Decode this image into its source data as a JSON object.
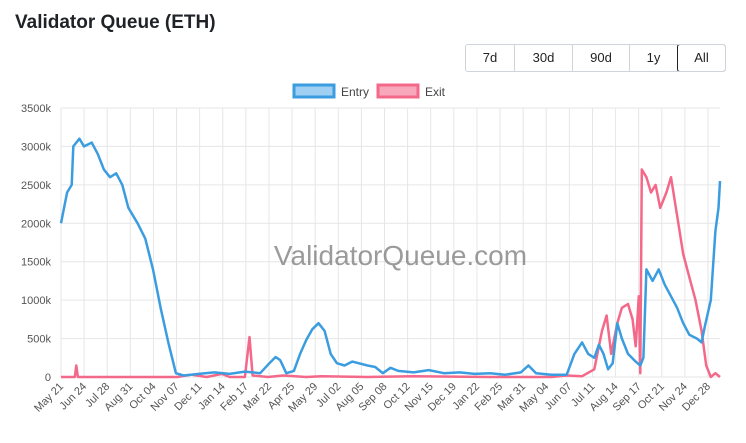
{
  "page": {
    "title": "Validator Queue (ETH)"
  },
  "range_buttons": [
    {
      "label": "7d",
      "active": false
    },
    {
      "label": "30d",
      "active": false
    },
    {
      "label": "90d",
      "active": false
    },
    {
      "label": "1y",
      "active": false
    },
    {
      "label": "All",
      "active": true
    }
  ],
  "watermark": "ValidatorQueue.com",
  "colors": {
    "entry": "#3b9de0",
    "exit": "#f4688a",
    "entry_fill": "#9fd0f3",
    "exit_fill": "#f7a9bb",
    "grid": "#e6e6e6"
  },
  "chart_data": {
    "type": "line",
    "title": "Validator Queue (ETH)",
    "legend_position": "top-center",
    "grid": true,
    "ylim": [
      0,
      3500000
    ],
    "yticks": [
      0,
      500000,
      1000000,
      1500000,
      2000000,
      2500000,
      3000000,
      3500000
    ],
    "ytick_labels": [
      "0",
      "500k",
      "1000k",
      "1500k",
      "2000k",
      "2500k",
      "3000k",
      "3500k"
    ],
    "x_range": [
      0,
      43
    ],
    "xtick_labels": [
      "May 21",
      "Jun 24",
      "Jul 28",
      "Aug 31",
      "Oct 04",
      "Nov 07",
      "Dec 11",
      "Jan 14",
      "Feb 17",
      "Mar 22",
      "Apr 25",
      "May 29",
      "Jul 02",
      "Aug 05",
      "Sep 08",
      "Oct 12",
      "Nov 15",
      "Dec 19",
      "Jan 22",
      "Feb 25",
      "Mar 31",
      "May 04",
      "Jun 07",
      "Jul 11",
      "Aug 14",
      "Sep 17",
      "Oct 21",
      "Nov 24",
      "Dec 28"
    ],
    "series": [
      {
        "name": "Entry",
        "points": [
          [
            0,
            2000000
          ],
          [
            0.4,
            2400000
          ],
          [
            0.7,
            2500000
          ],
          [
            0.8,
            3000000
          ],
          [
            1.2,
            3100000
          ],
          [
            1.5,
            3000000
          ],
          [
            2.0,
            3050000
          ],
          [
            2.4,
            2900000
          ],
          [
            2.8,
            2700000
          ],
          [
            3.2,
            2600000
          ],
          [
            3.6,
            2650000
          ],
          [
            4.0,
            2500000
          ],
          [
            4.4,
            2200000
          ],
          [
            5.0,
            2000000
          ],
          [
            5.5,
            1800000
          ],
          [
            6.0,
            1400000
          ],
          [
            6.5,
            900000
          ],
          [
            7.0,
            450000
          ],
          [
            7.5,
            50000
          ],
          [
            8,
            20000
          ],
          [
            9,
            40000
          ],
          [
            10,
            60000
          ],
          [
            11,
            40000
          ],
          [
            12,
            70000
          ],
          [
            13,
            50000
          ],
          [
            13.6,
            180000
          ],
          [
            14,
            260000
          ],
          [
            14.3,
            220000
          ],
          [
            14.7,
            50000
          ],
          [
            15.2,
            80000
          ],
          [
            15.6,
            300000
          ],
          [
            16,
            480000
          ],
          [
            16.4,
            620000
          ],
          [
            16.8,
            700000
          ],
          [
            17.2,
            600000
          ],
          [
            17.6,
            300000
          ],
          [
            18,
            180000
          ],
          [
            18.5,
            150000
          ],
          [
            19,
            200000
          ],
          [
            20,
            150000
          ],
          [
            20.5,
            130000
          ],
          [
            21,
            50000
          ],
          [
            21.5,
            120000
          ],
          [
            22,
            80000
          ],
          [
            23,
            60000
          ],
          [
            24,
            90000
          ],
          [
            25,
            50000
          ],
          [
            26,
            60000
          ],
          [
            27,
            40000
          ],
          [
            28,
            50000
          ],
          [
            29,
            30000
          ],
          [
            30,
            60000
          ],
          [
            30.5,
            150000
          ],
          [
            31,
            50000
          ],
          [
            32,
            30000
          ],
          [
            33,
            30000
          ],
          [
            33.5,
            300000
          ],
          [
            34,
            450000
          ],
          [
            34.4,
            300000
          ],
          [
            34.8,
            250000
          ],
          [
            35.1,
            420000
          ],
          [
            35.4,
            300000
          ],
          [
            35.7,
            100000
          ],
          [
            36,
            180000
          ],
          [
            36.3,
            700000
          ],
          [
            36.6,
            500000
          ],
          [
            37,
            300000
          ],
          [
            37.5,
            200000
          ],
          [
            37.8,
            150000
          ],
          [
            38.0,
            250000
          ],
          [
            38.2,
            1400000
          ],
          [
            38.6,
            1250000
          ],
          [
            39.0,
            1400000
          ],
          [
            39.4,
            1200000
          ],
          [
            39.8,
            1050000
          ],
          [
            40.2,
            900000
          ],
          [
            40.6,
            700000
          ],
          [
            41.0,
            550000
          ],
          [
            41.5,
            500000
          ],
          [
            41.8,
            450000
          ],
          [
            42.0,
            650000
          ],
          [
            42.4,
            1000000
          ],
          [
            42.7,
            1900000
          ],
          [
            42.9,
            2200000
          ],
          [
            43,
            2550000
          ]
        ]
      },
      {
        "name": "Exit",
        "points": [
          [
            0,
            0
          ],
          [
            0.9,
            0
          ],
          [
            1.0,
            150000
          ],
          [
            1.1,
            0
          ],
          [
            7.6,
            0
          ],
          [
            8.5,
            30000
          ],
          [
            9.5,
            0
          ],
          [
            10.5,
            40000
          ],
          [
            11,
            0
          ],
          [
            12,
            0
          ],
          [
            12.3,
            520000
          ],
          [
            12.5,
            20000
          ],
          [
            13.5,
            0
          ],
          [
            14.5,
            20000
          ],
          [
            16,
            0
          ],
          [
            17,
            10000
          ],
          [
            20,
            0
          ],
          [
            23,
            10000
          ],
          [
            28,
            0
          ],
          [
            32,
            0
          ],
          [
            33,
            20000
          ],
          [
            34,
            10000
          ],
          [
            34.8,
            100000
          ],
          [
            35.3,
            600000
          ],
          [
            35.6,
            800000
          ],
          [
            35.9,
            300000
          ],
          [
            36.3,
            700000
          ],
          [
            36.6,
            900000
          ],
          [
            37,
            950000
          ],
          [
            37.3,
            750000
          ],
          [
            37.5,
            400000
          ],
          [
            37.7,
            1050000
          ],
          [
            37.8,
            50000
          ],
          [
            37.9,
            2700000
          ],
          [
            38.2,
            2600000
          ],
          [
            38.5,
            2400000
          ],
          [
            38.8,
            2500000
          ],
          [
            39.1,
            2200000
          ],
          [
            39.5,
            2400000
          ],
          [
            39.8,
            2600000
          ],
          [
            40.2,
            2100000
          ],
          [
            40.6,
            1600000
          ],
          [
            41.0,
            1300000
          ],
          [
            41.4,
            1000000
          ],
          [
            41.8,
            600000
          ],
          [
            42.1,
            150000
          ],
          [
            42.4,
            0
          ],
          [
            42.7,
            50000
          ],
          [
            43,
            0
          ]
        ]
      }
    ]
  }
}
